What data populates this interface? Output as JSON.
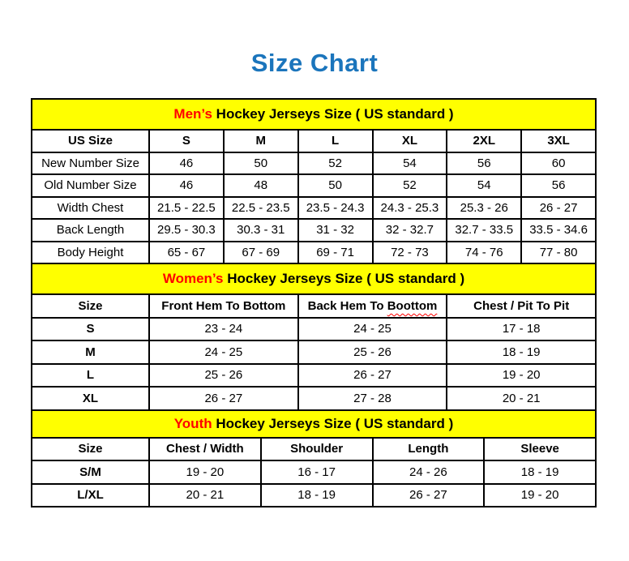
{
  "page": {
    "title": "Size Chart",
    "title_color": "#1B75BC"
  },
  "colors": {
    "banner_background": "#FFFF00",
    "banner_highlight": "#FF0000",
    "grid_border": "#000000",
    "spellcheck_underline": "#FF0000"
  },
  "men": {
    "banner": {
      "highlight": "Men’s",
      "rest": " Hockey Jerseys Size ( US standard )"
    },
    "headers": [
      "US Size",
      "S",
      "M",
      "L",
      "XL",
      "2XL",
      "3XL"
    ],
    "rows": [
      {
        "label": "New Number Size",
        "values": [
          "46",
          "50",
          "52",
          "54",
          "56",
          "60"
        ]
      },
      {
        "label": "Old Number Size",
        "values": [
          "46",
          "48",
          "50",
          "52",
          "54",
          "56"
        ]
      },
      {
        "label": "Width Chest",
        "values": [
          "21.5 - 22.5",
          "22.5 - 23.5",
          "23.5 - 24.3",
          "24.3 - 25.3",
          "25.3 - 26",
          "26 - 27"
        ]
      },
      {
        "label": "Back Length",
        "values": [
          "29.5 - 30.3",
          "30.3 - 31",
          "31 - 32",
          "32 - 32.7",
          "32.7 - 33.5",
          "33.5 - 34.6"
        ]
      },
      {
        "label": "Body Height",
        "values": [
          "65 - 67",
          "67 - 69",
          "69 - 71",
          "72 - 73",
          "74 - 76",
          "77 - 80"
        ]
      }
    ]
  },
  "women": {
    "banner": {
      "highlight": "Women’s",
      "rest": " Hockey Jerseys Size ( US standard )"
    },
    "headers": [
      {
        "text": "Size"
      },
      {
        "text": "Front Hem To Bottom"
      },
      {
        "prefix": "Back Hem To ",
        "misspelled": "Boottom"
      },
      {
        "text": "Chest / Pit To Pit"
      }
    ],
    "rows": [
      {
        "label": "S",
        "values": [
          "23 - 24",
          "24 - 25",
          "17 - 18"
        ]
      },
      {
        "label": "M",
        "values": [
          "24 - 25",
          "25 - 26",
          "18 - 19"
        ]
      },
      {
        "label": "L",
        "values": [
          "25 - 26",
          "26 - 27",
          "19 - 20"
        ]
      },
      {
        "label": "XL",
        "values": [
          "26 - 27",
          "27 - 28",
          "20 - 21"
        ]
      }
    ]
  },
  "youth": {
    "banner": {
      "highlight": "Youth",
      "rest": " Hockey Jerseys Size ( US standard )"
    },
    "headers": [
      "Size",
      "Chest / Width",
      "Shoulder",
      "Length",
      "Sleeve"
    ],
    "rows": [
      {
        "label": "S/M",
        "values": [
          "19 - 20",
          "16 - 17",
          "24 - 26",
          "18 - 19"
        ]
      },
      {
        "label": "L/XL",
        "values": [
          "20 - 21",
          "18 - 19",
          "26 - 27",
          "19 - 20"
        ]
      }
    ]
  }
}
